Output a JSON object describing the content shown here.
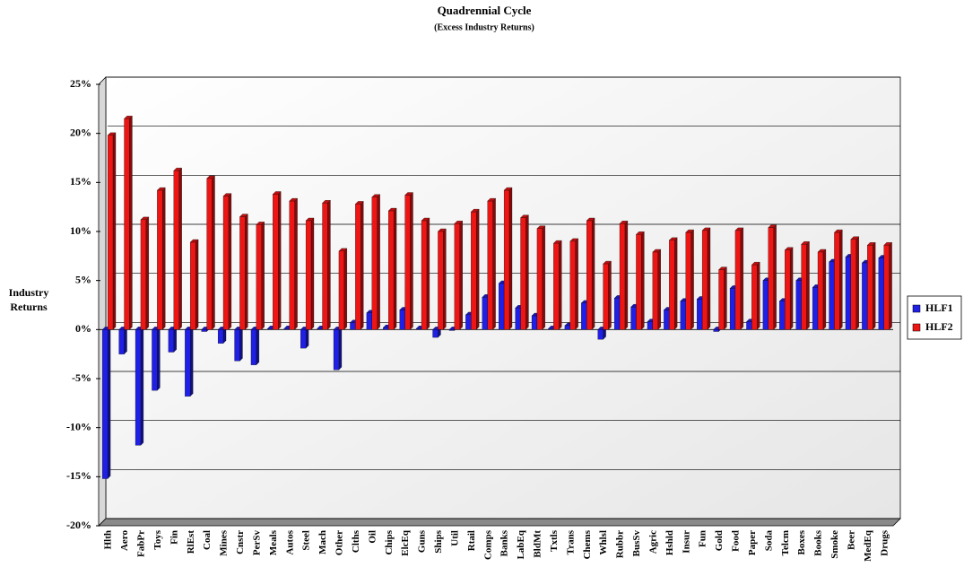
{
  "chart_data": {
    "type": "bar",
    "title": "Quadrennial Cycle",
    "subtitle": "(Excess Industry Returns)",
    "y_label": "Industry Returns",
    "categories": [
      "Hlth",
      "Aero",
      "FabPr",
      "Toys",
      "Fin",
      "RlEst",
      "Coal",
      "Mines",
      "Cnstr",
      "PerSv",
      "Meals",
      "Autos",
      "Steel",
      "Mach",
      "Other",
      "Clths",
      "Oil",
      "Chips",
      "ElcEq",
      "Guns",
      "Ships",
      "Util",
      "Rtail",
      "Comps",
      "Banks",
      "LabEq",
      "BldMt",
      "Txtls",
      "Trans",
      "Chems",
      "Whlsl",
      "Rubbr",
      "BusSv",
      "Agric",
      "Hshld",
      "Insur",
      "Fun",
      "Gold",
      "Food",
      "Paper",
      "Soda",
      "Telcm",
      "Boxes",
      "Books",
      "Smoke",
      "Beer",
      "MedEq",
      "Drugs"
    ],
    "series": [
      {
        "name": "HLF1",
        "color": "#1f1fe6",
        "values": [
          -15.2,
          -2.5,
          -11.8,
          -6.2,
          -2.3,
          -6.8,
          -0.2,
          -1.4,
          -3.2,
          -3.6,
          0.1,
          0.1,
          -1.9,
          0.1,
          -4.1,
          0.7,
          1.7,
          0.2,
          2.0,
          0.1,
          -0.8,
          -0.1,
          1.5,
          3.3,
          4.7,
          2.2,
          1.4,
          0.1,
          0.4,
          2.7,
          -1.0,
          3.2,
          2.3,
          0.8,
          2.0,
          2.9,
          3.1,
          -0.2,
          4.2,
          0.8,
          5.0,
          2.9,
          5.0,
          4.3,
          6.9,
          7.4,
          6.8,
          7.3
        ]
      },
      {
        "name": "HLF2",
        "color": "#ee1515",
        "values": [
          19.8,
          21.5,
          11.2,
          14.2,
          16.2,
          8.9,
          15.4,
          13.6,
          11.5,
          10.7,
          13.8,
          13.1,
          11.1,
          12.9,
          8.0,
          12.8,
          13.5,
          12.1,
          13.7,
          11.1,
          10.0,
          10.8,
          12.0,
          13.1,
          14.2,
          11.4,
          10.3,
          8.8,
          9.0,
          11.1,
          6.7,
          10.8,
          9.7,
          7.9,
          9.1,
          9.9,
          10.1,
          6.1,
          10.1,
          6.6,
          10.4,
          8.1,
          8.7,
          7.9,
          9.9,
          9.2,
          8.6,
          8.6
        ]
      }
    ],
    "ylim": [
      -20,
      25
    ],
    "yticks": [
      {
        "value": -20,
        "label": "-20%"
      },
      {
        "value": -15,
        "label": "-15%"
      },
      {
        "value": -10,
        "label": "-10%"
      },
      {
        "value": -5,
        "label": "-5%"
      },
      {
        "value": 0,
        "label": "0%"
      },
      {
        "value": 5,
        "label": "5%"
      },
      {
        "value": 10,
        "label": "10%"
      },
      {
        "value": 15,
        "label": "15%"
      },
      {
        "value": 20,
        "label": "20%"
      },
      {
        "value": 25,
        "label": "25%"
      }
    ],
    "grid": true,
    "legend": "right"
  }
}
